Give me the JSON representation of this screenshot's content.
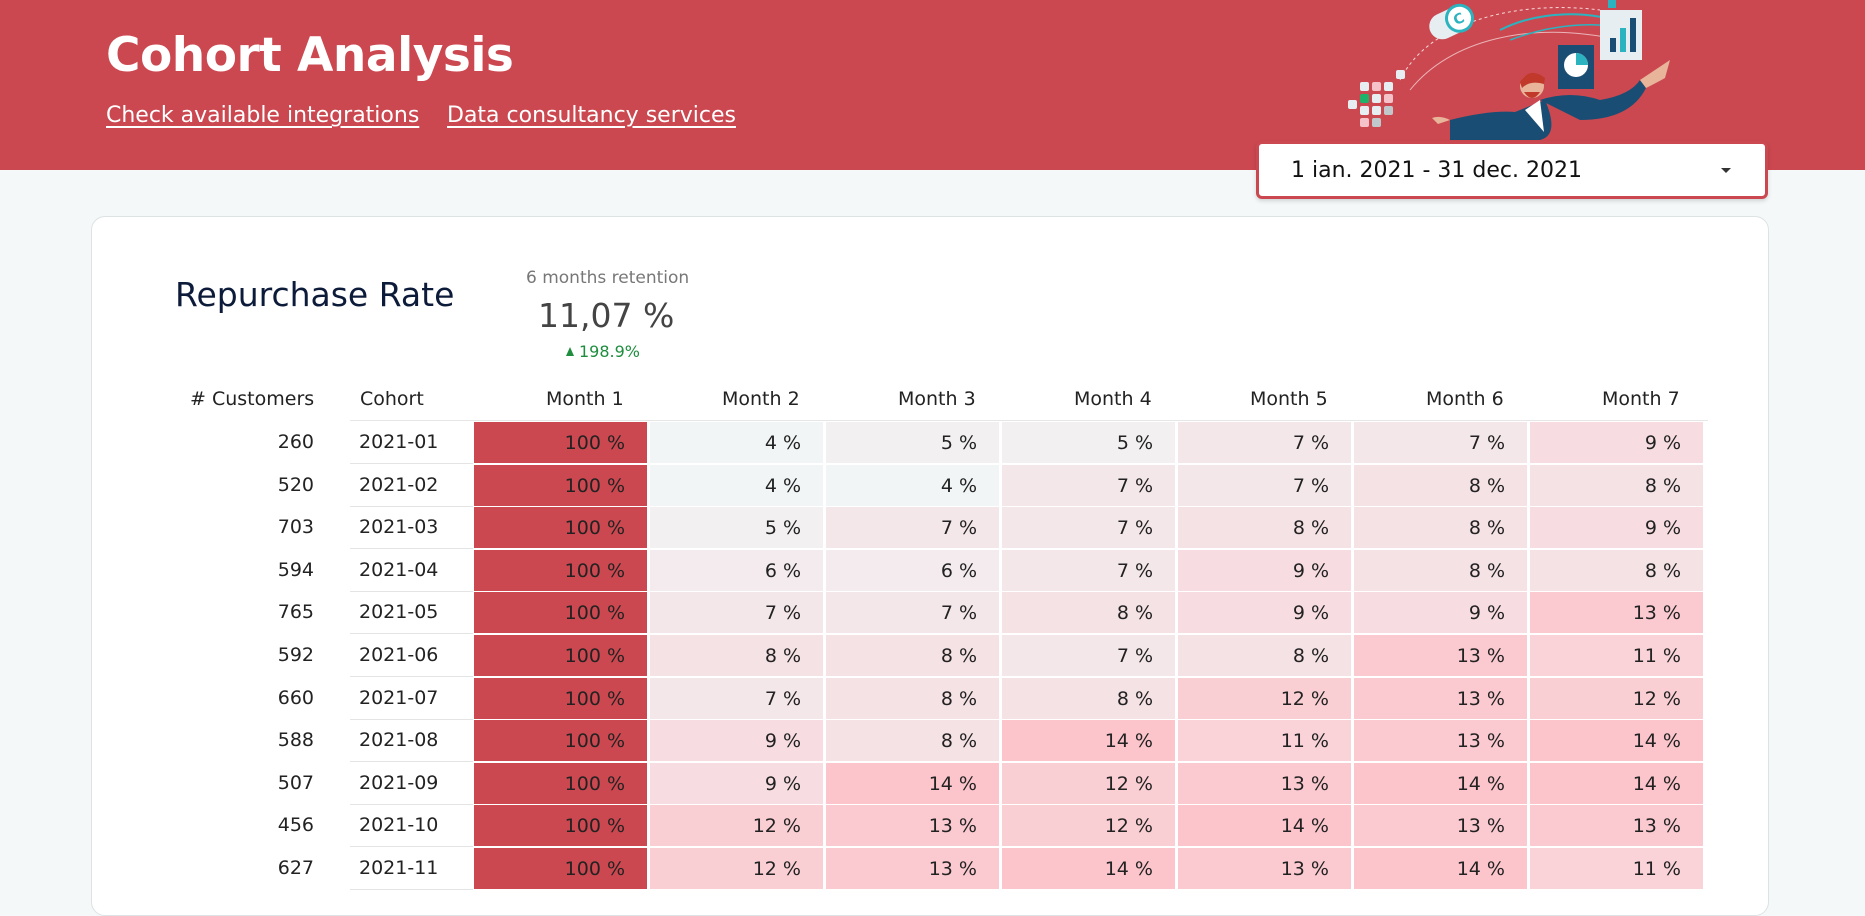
{
  "header": {
    "title": "Cohort Analysis",
    "links": [
      "Check available integrations",
      "Data consultancy services"
    ],
    "date_range": "1 ian. 2021 - 31 dec. 2021"
  },
  "card": {
    "title": "Repurchase Rate",
    "kpi": {
      "label": "6 months retention",
      "value": "11,07 %",
      "delta": "198.9%"
    }
  },
  "colors": {
    "brand": "#cb4850",
    "positive": "#1e8e3e"
  },
  "chart_data": {
    "type": "heatmap",
    "columns": [
      "# Customers",
      "Cohort",
      "Month 1",
      "Month 2",
      "Month 3",
      "Month 4",
      "Month 5",
      "Month 6",
      "Month 7"
    ],
    "rows": [
      {
        "customers": "260",
        "cohort": "2021-01",
        "values": [
          100,
          4,
          5,
          5,
          7,
          7,
          9
        ]
      },
      {
        "customers": "520",
        "cohort": "2021-02",
        "values": [
          100,
          4,
          4,
          7,
          7,
          8,
          8
        ]
      },
      {
        "customers": "703",
        "cohort": "2021-03",
        "values": [
          100,
          5,
          7,
          7,
          8,
          8,
          9
        ]
      },
      {
        "customers": "594",
        "cohort": "2021-04",
        "values": [
          100,
          6,
          6,
          7,
          9,
          8,
          8
        ]
      },
      {
        "customers": "765",
        "cohort": "2021-05",
        "values": [
          100,
          7,
          7,
          8,
          9,
          9,
          13
        ]
      },
      {
        "customers": "592",
        "cohort": "2021-06",
        "values": [
          100,
          8,
          8,
          7,
          8,
          13,
          11
        ]
      },
      {
        "customers": "660",
        "cohort": "2021-07",
        "values": [
          100,
          7,
          8,
          8,
          12,
          13,
          12
        ]
      },
      {
        "customers": "588",
        "cohort": "2021-08",
        "values": [
          100,
          9,
          8,
          14,
          11,
          13,
          14
        ]
      },
      {
        "customers": "507",
        "cohort": "2021-09",
        "values": [
          100,
          9,
          14,
          12,
          13,
          14,
          14
        ]
      },
      {
        "customers": "456",
        "cohort": "2021-10",
        "values": [
          100,
          12,
          13,
          12,
          14,
          13,
          13
        ]
      },
      {
        "customers": "627",
        "cohort": "2021-11",
        "values": [
          100,
          12,
          13,
          14,
          13,
          14,
          11
        ]
      }
    ],
    "value_suffix": " %"
  }
}
